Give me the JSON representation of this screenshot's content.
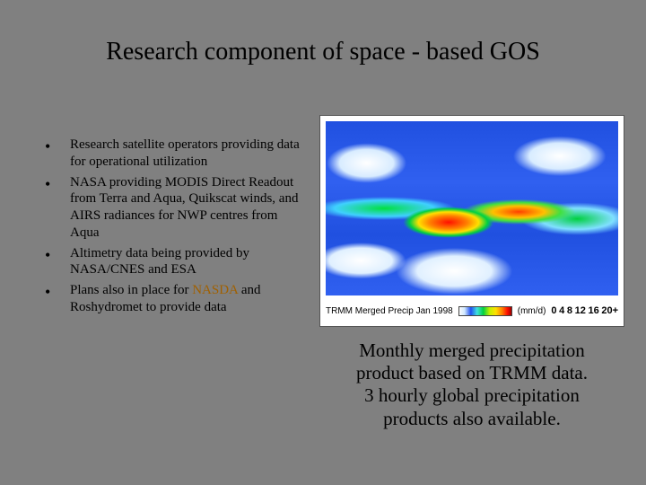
{
  "title": "Research component of space - based GOS",
  "bullets": [
    {
      "pre": "Research satellite operators providing data for operational utilization",
      "agency": "",
      "post": ""
    },
    {
      "pre": "NASA providing MODIS Direct Readout from Terra and Aqua, Quikscat winds, and AIRS radiances for NWP centres from Aqua",
      "agency": "",
      "post": ""
    },
    {
      "pre": "Altimetry data being provided by NASA/CNES and ESA",
      "agency": "",
      "post": ""
    },
    {
      "pre": "Plans also in place for ",
      "agency": "NASDA",
      "post": " and Roshydromet to provide data"
    }
  ],
  "map": {
    "legend_label": "TRMM Merged Precip Jan 1998",
    "legend_units": "(mm/d)",
    "ticks": [
      "0",
      "4",
      "8",
      "12",
      "16",
      "20+"
    ],
    "colorbar": [
      "#fbfbfb",
      "#d0e8ff",
      "#2050f0",
      "#40e0e0",
      "#00d040",
      "#c0f000",
      "#ffe000",
      "#ff8000",
      "#ff1000",
      "#a00000"
    ]
  },
  "caption": {
    "l1": "Monthly merged precipitation",
    "l2": "product based on TRMM data.",
    "l3": "3 hourly global precipitation",
    "l4": "products also available."
  },
  "style": {
    "bg": "#808080",
    "title_fontsize": 28,
    "bullet_fontsize": 15,
    "caption_fontsize": 21,
    "agency_color": "#a06000"
  }
}
